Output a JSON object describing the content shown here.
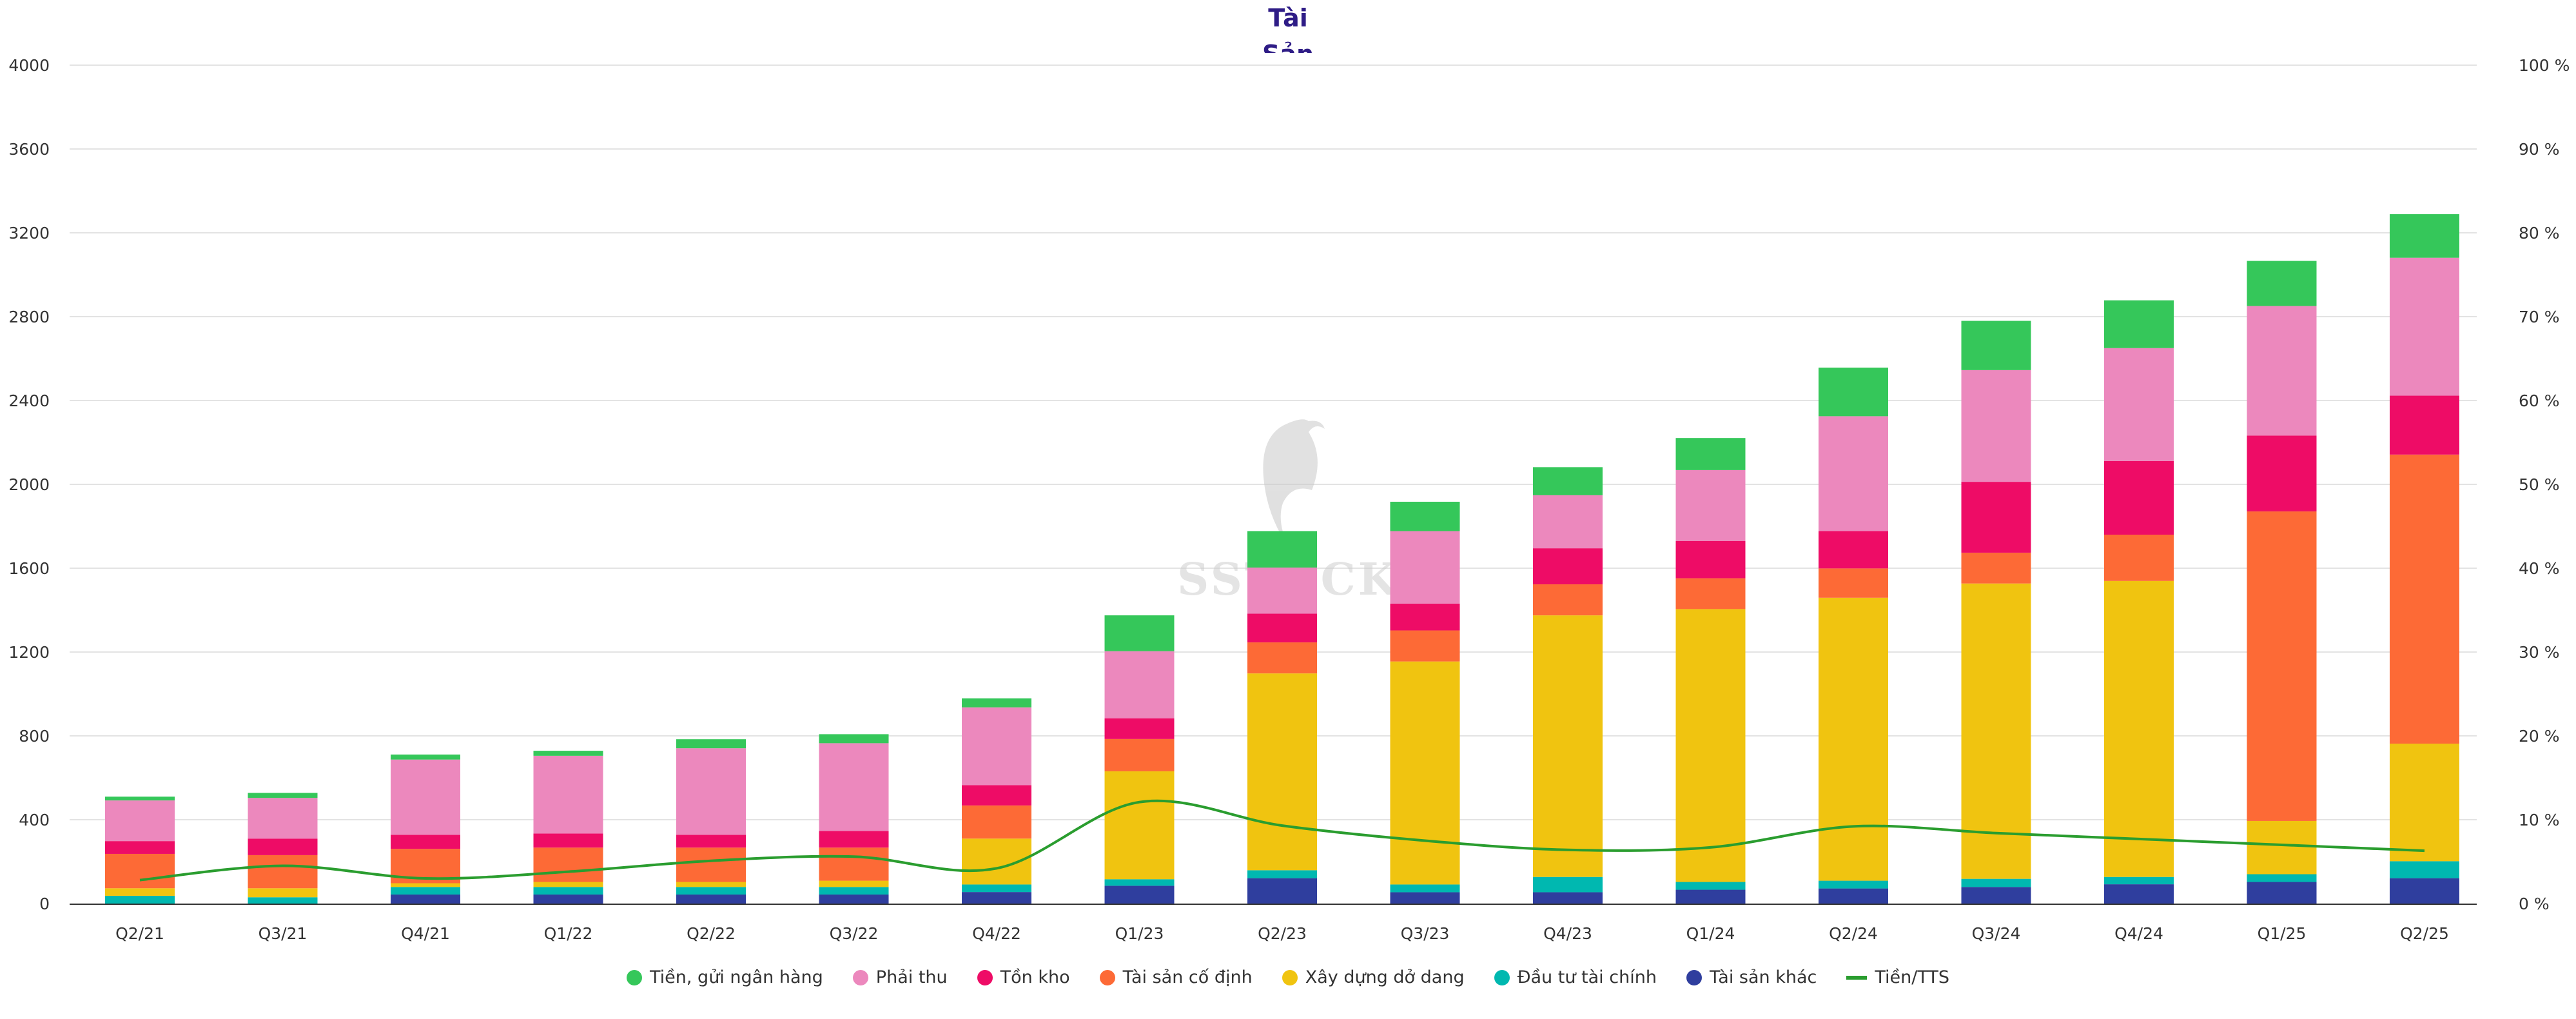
{
  "chart_data": {
    "type": "bar",
    "stacked": true,
    "title": "Tài Sản",
    "title_lines": [
      "Tài",
      "Sản"
    ],
    "categories": [
      "Q2/21",
      "Q3/21",
      "Q4/21",
      "Q1/22",
      "Q2/22",
      "Q3/22",
      "Q4/22",
      "Q1/23",
      "Q2/23",
      "Q3/23",
      "Q4/23",
      "Q1/24",
      "Q2/24",
      "Q3/24",
      "Q4/24",
      "Q1/25",
      "Q2/25"
    ],
    "y_left": {
      "min": 0,
      "max": 4000,
      "ticks": [
        "0",
        "400",
        "800",
        "1200",
        "1600",
        "2000",
        "2400",
        "2800",
        "3200",
        "3600",
        "4000"
      ]
    },
    "y_right": {
      "min": 0,
      "max": 100,
      "unit": "%",
      "ticks": [
        "0 %",
        "10 %",
        "20 %",
        "30 %",
        "40 %",
        "50 %",
        "60 %",
        "70 %",
        "80 %",
        "90 %",
        "100 %"
      ]
    },
    "grid": true,
    "legend_position": "bottom",
    "series": [
      {
        "name": "Tài sản khác",
        "color": "#2f3e9e",
        "values": [
          0,
          0,
          43,
          43,
          43,
          43,
          55,
          85,
          121,
          54,
          54,
          66,
          72,
          79,
          92,
          103,
          121
        ]
      },
      {
        "name": "Đầu tư tài chính",
        "color": "#00b8b0",
        "values": [
          37,
          30,
          36,
          36,
          36,
          36,
          36,
          31,
          38,
          37,
          73,
          37,
          37,
          39,
          35,
          37,
          81
        ]
      },
      {
        "name": "Xây dựng dở dang",
        "color": "#f0c410",
        "values": [
          36,
          43,
          18,
          24,
          24,
          30,
          219,
          515,
          939,
          1064,
          1248,
          1302,
          1350,
          1409,
          1412,
          254,
          561
        ]
      },
      {
        "name": "Tài sản cố định",
        "color": "#fd6a36",
        "values": [
          164,
          158,
          164,
          164,
          164,
          158,
          158,
          154,
          148,
          148,
          148,
          147,
          140,
          147,
          221,
          1477,
          1379
        ]
      },
      {
        "name": "Tồn kho",
        "color": "#ee0c66",
        "values": [
          61,
          79,
          67,
          67,
          61,
          79,
          97,
          99,
          137,
          128,
          172,
          178,
          178,
          338,
          351,
          362,
          281
        ]
      },
      {
        "name": "Phải thu",
        "color": "#ec88bd",
        "values": [
          194,
          194,
          359,
          371,
          413,
          419,
          371,
          320,
          220,
          346,
          253,
          338,
          548,
          533,
          539,
          618,
          658
        ]
      },
      {
        "name": "Tiền, gửi ngân hàng",
        "color": "#35c75a",
        "values": [
          18,
          24,
          24,
          24,
          43,
          43,
          43,
          171,
          174,
          140,
          134,
          153,
          232,
          235,
          228,
          215,
          208
        ]
      }
    ],
    "line_series": {
      "name": "Tiền/TTS",
      "color": "#2a9d2f",
      "axis": "right",
      "values": [
        2.8,
        4.5,
        3.0,
        3.8,
        5.1,
        5.6,
        4.2,
        12.1,
        9.3,
        7.5,
        6.4,
        6.7,
        9.2,
        8.4,
        7.7,
        7.0,
        6.3
      ]
    },
    "legend": [
      "Tiền, gửi ngân hàng",
      "Phải thu",
      "Tồn kho",
      "Tài sản cố định",
      "Xây dựng dở dang",
      "Đầu tư tài chính",
      "Tài sản khác",
      "Tiền/TTS"
    ],
    "watermark": "SSTOCK"
  }
}
